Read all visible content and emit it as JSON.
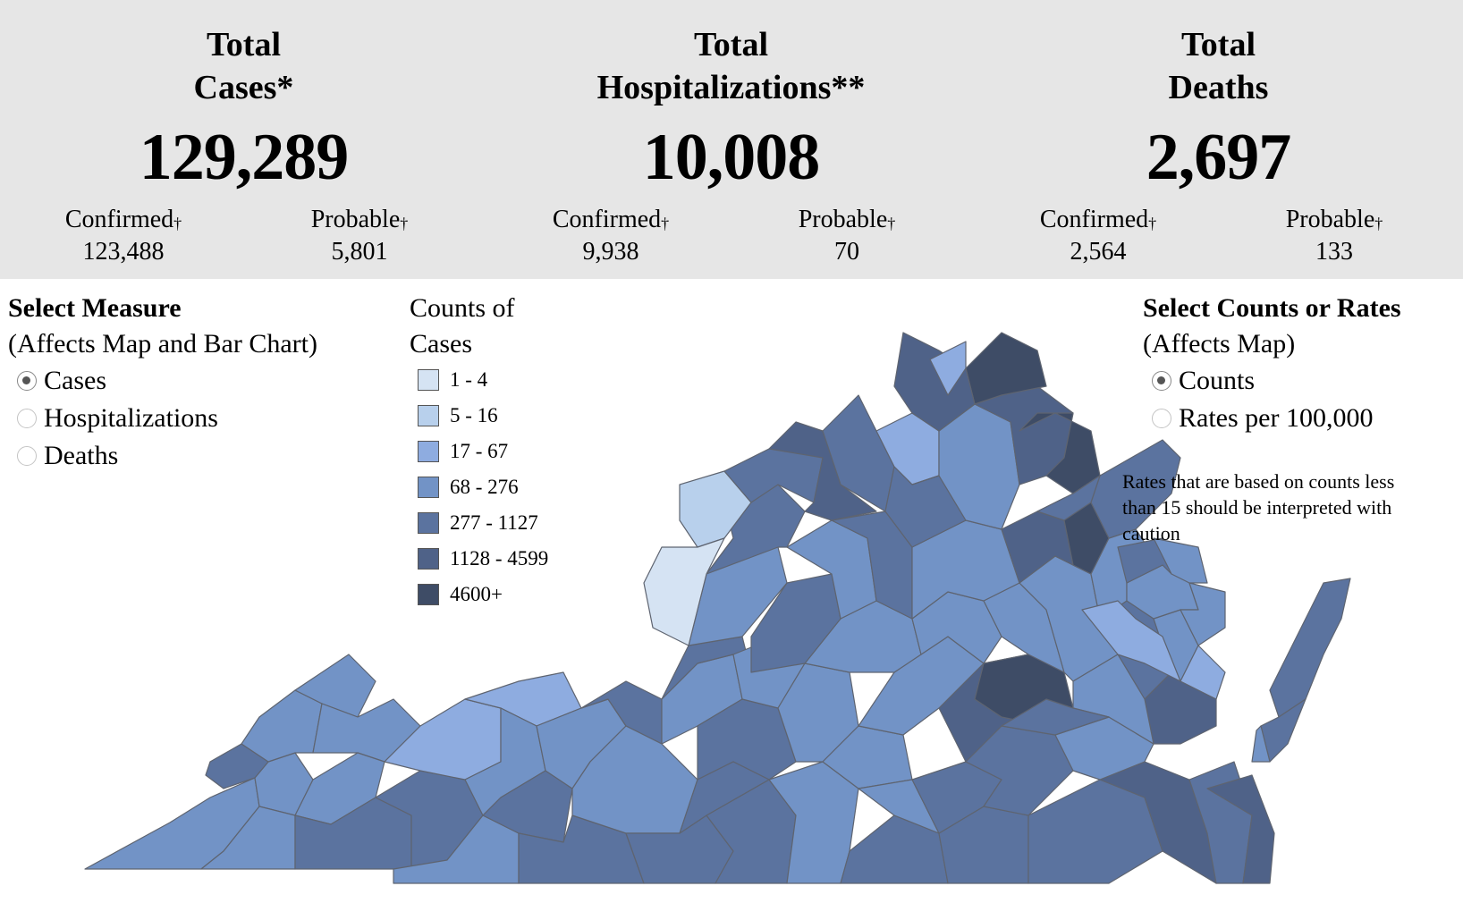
{
  "summary": {
    "cases": {
      "title_line1": "Total",
      "title_line2": "Cases*",
      "total": "129,289",
      "confirmed_label": "Confirmed",
      "confirmed": "123,488",
      "probable_label": "Probable",
      "probable": "5,801"
    },
    "hospitalizations": {
      "title_line1": "Total",
      "title_line2": "Hospitalizations**",
      "total": "10,008",
      "confirmed_label": "Confirmed",
      "confirmed": "9,938",
      "probable_label": "Probable",
      "probable": "70"
    },
    "deaths": {
      "title_line1": "Total",
      "title_line2": "Deaths",
      "total": "2,697",
      "confirmed_label": "Confirmed",
      "confirmed": "2,564",
      "probable_label": "Probable",
      "probable": "133"
    },
    "dagger": "†"
  },
  "measure_selector": {
    "title": "Select Measure",
    "subtitle": "(Affects Map and Bar Chart)",
    "options": [
      "Cases",
      "Hospitalizations",
      "Deaths"
    ],
    "selected": "Cases"
  },
  "legend": {
    "title_line1": "Counts of",
    "title_line2": "Cases",
    "bins": [
      {
        "label": "1 - 4",
        "color": "#d5e3f3"
      },
      {
        "label": "5 - 16",
        "color": "#b8d0ec"
      },
      {
        "label": "17 - 67",
        "color": "#8eace0"
      },
      {
        "label": "68 - 276",
        "color": "#7293c6"
      },
      {
        "label": "277 - 1127",
        "color": "#5b739f"
      },
      {
        "label": "1128 - 4599",
        "color": "#4f6288"
      },
      {
        "label": "4600+",
        "color": "#3e4c66"
      }
    ]
  },
  "rate_selector": {
    "title": "Select Counts or Rates",
    "subtitle": "(Affects Map)",
    "options": [
      "Counts",
      "Rates per 100,000"
    ],
    "selected": "Counts"
  },
  "note": "Rates that are based on counts less than 15 should be interpreted with caution"
}
